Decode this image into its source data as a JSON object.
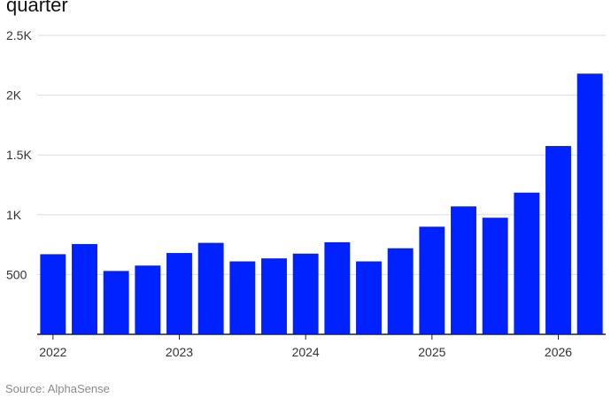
{
  "title": "quarter",
  "source": "Source: AlphaSense",
  "colors": {
    "bar": "#0022ff",
    "grid": "#dddddd",
    "axis": "#222222",
    "tick_text": "#333333",
    "source_text": "#8a8a8a"
  },
  "chart_data": {
    "type": "bar",
    "title": "quarter",
    "xlabel": "",
    "ylabel": "",
    "ylim": [
      0,
      2500
    ],
    "y_ticks": [
      {
        "value": 500,
        "label": "500"
      },
      {
        "value": 1000,
        "label": "1K"
      },
      {
        "value": 1500,
        "label": "1.5K"
      },
      {
        "value": 2000,
        "label": "2K"
      },
      {
        "value": 2500,
        "label": "2.5K"
      }
    ],
    "x_tick_labels": [
      {
        "label": "2022",
        "index": 0
      },
      {
        "label": "2023",
        "index": 4
      },
      {
        "label": "2024",
        "index": 8
      },
      {
        "label": "2025",
        "index": 12
      },
      {
        "label": "2026",
        "index": 16
      }
    ],
    "categories": [
      "2022 Q1",
      "2022 Q2",
      "2022 Q3",
      "2022 Q4",
      "2023 Q1",
      "2023 Q2",
      "2023 Q3",
      "2023 Q4",
      "2024 Q1",
      "2024 Q2",
      "2024 Q3",
      "2024 Q4",
      "2025 Q1",
      "2025 Q2",
      "2025 Q3",
      "2025 Q4",
      "2026 Q1",
      "2026 Q2"
    ],
    "values": [
      670,
      755,
      530,
      575,
      680,
      765,
      610,
      635,
      675,
      770,
      610,
      720,
      900,
      1070,
      975,
      1185,
      1575,
      2180
    ],
    "grid": true,
    "legend": "none"
  }
}
